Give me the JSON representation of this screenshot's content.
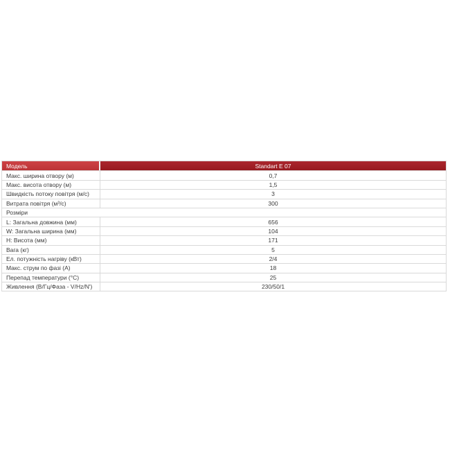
{
  "page": {
    "background": "#ffffff"
  },
  "table": {
    "header": {
      "model_label": "Модель",
      "model_value": "Standart E 07"
    },
    "colors": {
      "header_left_bg": "#c5393c",
      "header_right_bg": "#9c1e24",
      "header_text": "#ffffff",
      "border": "#d9d9d9",
      "row_text": "#3b3b3b"
    },
    "rows": [
      {
        "label": "Макс. ширина отвору (м)",
        "value": "0,7"
      },
      {
        "label": "Макс. висота отвору (м)",
        "value": "1,5"
      },
      {
        "label": "Швидкість потоку повітря (м/с)",
        "value": "3"
      },
      {
        "label": "Витрата повітря (м³/с)",
        "value": "300"
      },
      {
        "label": "Розміри",
        "value": "",
        "section": true
      },
      {
        "label": "L: Загальна довжина (мм)",
        "value": "656"
      },
      {
        "label": "W: Загальна ширина (мм)",
        "value": "104"
      },
      {
        "label": "H: Висота (мм)",
        "value": "171"
      },
      {
        "label": "Вага (кг)",
        "value": "5"
      },
      {
        "label": "Ел. потужність нагріву (кВт)",
        "value": "2/4"
      },
      {
        "label": "Макс. струм по фазі (А)",
        "value": "18"
      },
      {
        "label": "Перепад температури (°С)",
        "value": "25"
      },
      {
        "label": "Живлення (В/Гц/Фаза - V/Hz/N')",
        "value": "230/50/1"
      }
    ]
  }
}
